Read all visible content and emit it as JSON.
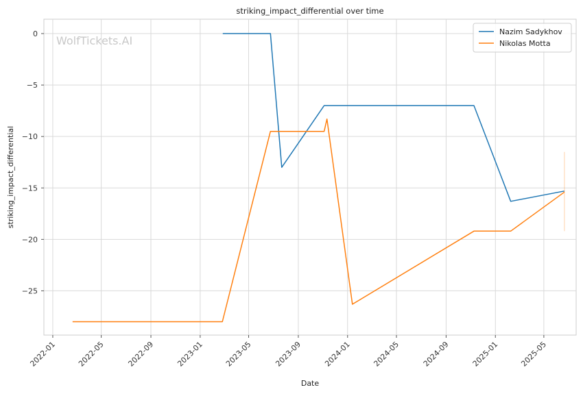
{
  "chart_data": {
    "type": "line",
    "title": "striking_impact_differential over time",
    "xlabel": "Date",
    "ylabel": "striking_impact_differential",
    "watermark": "WolfTickets.AI",
    "x_ticks": [
      "2022-01",
      "2022-05",
      "2022-09",
      "2023-01",
      "2023-05",
      "2023-09",
      "2024-01",
      "2024-05",
      "2024-09",
      "2025-01",
      "2025-05"
    ],
    "y_ticks": [
      0,
      -5,
      -10,
      -15,
      -20,
      -25
    ],
    "y_tick_labels": [
      "0",
      "−5",
      "−10",
      "−15",
      "−20",
      "−25"
    ],
    "xlim": [
      "2021-12-10",
      "2025-07-20"
    ],
    "ylim": [
      -29.3,
      1.4
    ],
    "grid": true,
    "legend": "top-right",
    "colors": {
      "Nazim Sadykhov": "#1f77b4",
      "Nikolas Motta": "#ff7f0e"
    },
    "series": [
      {
        "name": "Nazim Sadykhov",
        "x": [
          "2023-02-26",
          "2023-06-24",
          "2023-07-22",
          "2023-11-04",
          "2024-11-09",
          "2025-02-08",
          "2025-06-21"
        ],
        "y": [
          0,
          0,
          -13,
          -7,
          -7,
          -16.3,
          -15.3
        ]
      },
      {
        "name": "Nikolas Motta",
        "x": [
          "2022-02-19",
          "2023-02-25",
          "2023-06-24",
          "2023-11-04",
          "2023-11-11",
          "2024-01-13",
          "2024-11-09",
          "2025-02-08",
          "2025-06-21"
        ],
        "y": [
          -28,
          -28,
          -9.5,
          -9.5,
          -8.3,
          -26.3,
          -19.2,
          -19.2,
          -15.4
        ]
      }
    ]
  }
}
